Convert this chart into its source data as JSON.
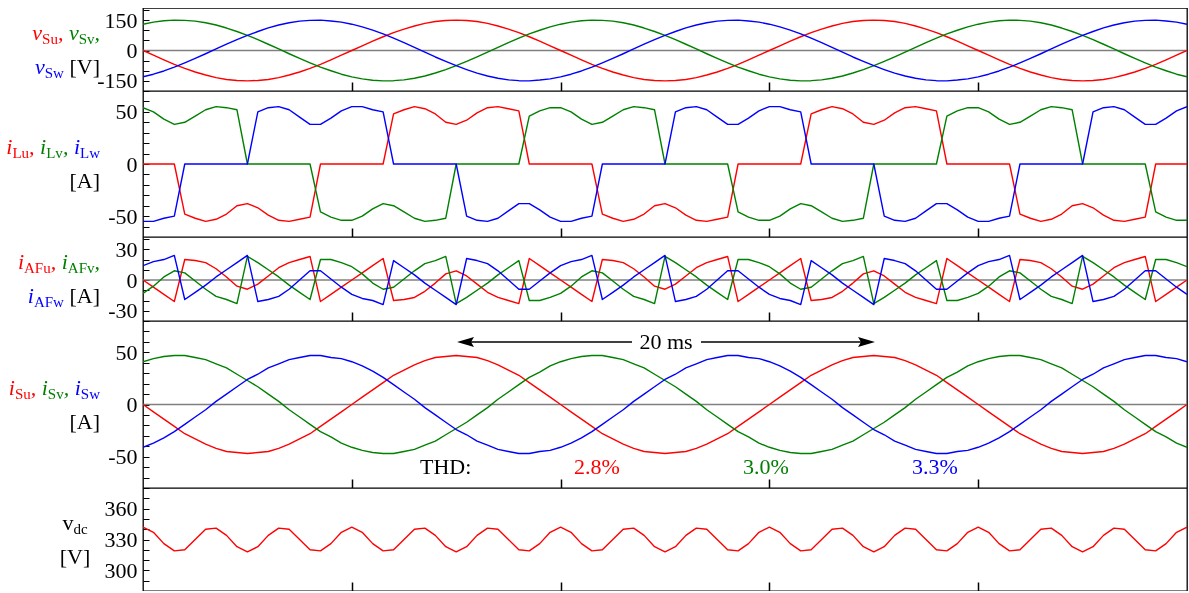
{
  "chart_data": [
    {
      "type": "line",
      "ylabel": "v$_{Su}$, v$_{Sv}$, v$_{Sw}$ [V]",
      "tick_labels": "y",
      "ylim": [
        -200,
        210
      ],
      "yticks": [
        {
          "value": -200,
          "label": null
        },
        -150,
        {
          "value": -100,
          "label": null
        },
        {
          "value": -50,
          "label": null
        },
        0,
        {
          "value": 50,
          "label": null
        },
        {
          "value": 100,
          "label": null
        },
        150,
        {
          "value": 200,
          "label": null
        }
      ],
      "ref_lines": [
        {
          "axis": "y",
          "value": 0,
          "color": "#808080"
        }
      ],
      "categories": [
        null,
        null,
        null,
        null,
        null,
        null,
        null,
        null,
        null,
        null,
        null,
        null,
        null,
        null,
        null,
        null,
        null,
        null,
        null,
        null,
        null,
        null,
        null,
        null,
        null,
        null,
        null,
        null,
        null,
        null,
        null,
        null,
        null,
        null,
        null,
        null,
        null,
        null,
        null,
        null,
        null,
        null,
        null,
        null,
        null,
        null,
        null,
        null,
        null,
        null,
        null,
        null,
        null,
        null,
        null,
        null,
        null,
        null,
        null,
        null,
        null,
        null,
        null,
        null,
        null,
        null,
        null,
        null,
        null,
        null,
        null,
        null,
        null,
        null,
        null,
        null,
        null,
        null,
        null,
        null,
        null,
        null,
        null,
        null,
        null,
        null,
        null,
        null,
        null,
        null,
        null,
        null,
        null,
        null,
        null,
        null,
        null,
        null,
        null,
        null,
        null
      ],
      "series": [
        {
          "color": "#ff0000",
          "values": [
            0,
            -23,
            -46,
            -68,
            -88,
            -106,
            -121,
            -134,
            -143,
            -148,
            -150,
            -148,
            -143,
            -134,
            -121,
            -106,
            -88,
            -68,
            -46,
            -23,
            0,
            23,
            46,
            68,
            88,
            106,
            121,
            134,
            143,
            148,
            150,
            148,
            143,
            134,
            121,
            106,
            88,
            68,
            46,
            23,
            0,
            -23,
            -46,
            -68,
            -88,
            -106,
            -121,
            -134,
            -143,
            -148,
            -150,
            -148,
            -143,
            -134,
            -121,
            -106,
            -88,
            -68,
            -46,
            -23,
            0,
            23,
            46,
            68,
            88,
            106,
            121,
            134,
            143,
            148,
            150,
            148,
            143,
            134,
            121,
            106,
            88,
            68,
            46,
            23,
            0,
            -23,
            -46,
            -68,
            -88,
            -106,
            -121,
            -134,
            -143,
            -148,
            -150,
            -148,
            -143,
            -134,
            -121,
            -106,
            -88,
            -68,
            -46,
            -23,
            0
          ]
        },
        {
          "color": "#008000",
          "values": [
            130,
            140,
            147,
            150,
            149,
            145,
            137,
            126,
            111,
            94,
            75,
            54,
            31,
            8,
            -16,
            -39,
            -61,
            -82,
            -100,
            -117,
            -130,
            -140,
            -147,
            -150,
            -149,
            -145,
            -137,
            -126,
            -111,
            -94,
            -75,
            -54,
            -31,
            -8,
            16,
            39,
            61,
            82,
            100,
            117,
            130,
            140,
            147,
            150,
            149,
            145,
            137,
            126,
            111,
            94,
            75,
            54,
            31,
            8,
            -16,
            -39,
            -61,
            -82,
            -100,
            -117,
            -130,
            -140,
            -147,
            -150,
            -149,
            -145,
            -137,
            -126,
            -111,
            -94,
            -75,
            -54,
            -31,
            -8,
            16,
            39,
            61,
            82,
            100,
            117,
            130,
            140,
            147,
            150,
            149,
            145,
            137,
            126,
            111,
            94,
            75,
            54,
            31,
            8,
            -16,
            -39,
            -61,
            -82,
            -100,
            -117,
            -130
          ]
        },
        {
          "color": "#0000ff",
          "values": [
            -130,
            -117,
            -101,
            -82,
            -61,
            -39,
            -16,
            8,
            32,
            54,
            75,
            94,
            112,
            126,
            137,
            145,
            149,
            150,
            146,
            140,
            130,
            117,
            101,
            82,
            61,
            39,
            16,
            -8,
            -32,
            -54,
            -75,
            -94,
            -112,
            -126,
            -137,
            -145,
            -149,
            -150,
            -146,
            -140,
            -130,
            -117,
            -101,
            -82,
            -61,
            -39,
            -16,
            8,
            32,
            54,
            75,
            94,
            112,
            126,
            137,
            145,
            149,
            150,
            146,
            140,
            130,
            117,
            101,
            82,
            61,
            39,
            16,
            -8,
            -32,
            -54,
            -75,
            -94,
            -112,
            -126,
            -137,
            -145,
            -149,
            -150,
            -146,
            -140,
            -130,
            -117,
            -101,
            -82,
            -61,
            -39,
            -16,
            8,
            32,
            54,
            75,
            94,
            112,
            126,
            137,
            145,
            149,
            150,
            146,
            140,
            130
          ]
        }
      ]
    },
    {
      "type": "line",
      "ylabel": "i$_{Lu}$, i$_{Lv}$, i$_{Lw}$ [A]",
      "tick_labels": "y",
      "ylim": [
        -70,
        70
      ],
      "yticks": [
        {
          "value": -70,
          "label": null
        },
        {
          "value": -60,
          "label": null
        },
        -50,
        {
          "value": -40,
          "label": null
        },
        {
          "value": -30,
          "label": null
        },
        {
          "value": -20,
          "label": null
        },
        {
          "value": -10,
          "label": null
        },
        0,
        {
          "value": 10,
          "label": null
        },
        {
          "value": 20,
          "label": null
        },
        {
          "value": 30,
          "label": null
        },
        {
          "value": 40,
          "label": null
        },
        50,
        {
          "value": 60,
          "label": null
        },
        {
          "value": 70,
          "label": null
        }
      ],
      "categories": [
        null,
        null,
        null,
        null,
        null,
        null,
        null,
        null,
        null,
        null,
        null,
        null,
        null,
        null,
        null,
        null,
        null,
        null,
        null,
        null,
        null,
        null,
        null,
        null,
        null,
        null,
        null,
        null,
        null,
        null,
        null,
        null,
        null,
        null,
        null,
        null,
        null,
        null,
        null,
        null,
        null,
        null,
        null,
        null,
        null,
        null,
        null,
        null,
        null,
        null,
        null,
        null,
        null,
        null,
        null,
        null,
        null,
        null,
        null,
        null,
        null,
        null,
        null,
        null,
        null,
        null,
        null,
        null,
        null,
        null,
        null,
        null,
        null,
        null,
        null,
        null,
        null,
        null,
        null,
        null,
        null,
        null,
        null,
        null,
        null,
        null,
        null,
        null,
        null,
        null,
        null,
        null,
        null,
        null,
        null,
        null,
        null,
        null,
        null,
        null,
        null
      ],
      "series": [
        {
          "color": "#ff0000",
          "values": [
            0,
            0,
            0,
            0,
            -48,
            -52,
            -55,
            -53,
            -48,
            -40,
            -38,
            -42,
            -49,
            -54,
            -55,
            -53,
            -51,
            0,
            0,
            0,
            0,
            0,
            0,
            0,
            48,
            52,
            55,
            53,
            48,
            40,
            38,
            42,
            49,
            54,
            55,
            53,
            51,
            0,
            0,
            0,
            0,
            0,
            0,
            0,
            -48,
            -52,
            -55,
            -53,
            -48,
            -40,
            -38,
            -42,
            -49,
            -54,
            -55,
            -53,
            -51,
            0,
            0,
            0,
            0,
            0,
            0,
            0,
            48,
            52,
            55,
            53,
            48,
            40,
            38,
            42,
            49,
            54,
            55,
            53,
            51,
            0,
            0,
            0,
            0,
            0,
            0,
            0,
            -48,
            -52,
            -55,
            -53,
            -48,
            -40,
            -38,
            -42,
            -49,
            -54,
            -55,
            -53,
            -51,
            0,
            0,
            0,
            0
          ]
        },
        {
          "color": "#008000",
          "values": [
            54,
            50,
            43,
            38,
            40,
            46,
            52,
            55,
            54,
            52,
            0,
            0,
            0,
            0,
            0,
            0,
            0,
            -46,
            -51,
            -54,
            -54,
            -50,
            -43,
            -38,
            -40,
            -46,
            -52,
            -55,
            -54,
            -52,
            0,
            0,
            0,
            0,
            0,
            0,
            0,
            46,
            51,
            54,
            54,
            50,
            43,
            38,
            40,
            46,
            52,
            55,
            54,
            52,
            0,
            0,
            0,
            0,
            0,
            0,
            0,
            -46,
            -51,
            -54,
            -54,
            -50,
            -43,
            -38,
            -40,
            -46,
            -52,
            -55,
            -54,
            -52,
            0,
            0,
            0,
            0,
            0,
            0,
            0,
            46,
            51,
            54,
            54,
            50,
            43,
            38,
            40,
            46,
            52,
            55,
            54,
            52,
            0,
            0,
            0,
            0,
            0,
            0,
            0,
            -46,
            -51,
            -54,
            -54
          ]
        },
        {
          "color": "#0000ff",
          "values": [
            -55,
            -55,
            -52,
            -50,
            0,
            0,
            0,
            0,
            0,
            0,
            0,
            50,
            54,
            55,
            52,
            45,
            38,
            38,
            44,
            51,
            55,
            55,
            52,
            50,
            0,
            0,
            0,
            0,
            0,
            0,
            0,
            -50,
            -54,
            -55,
            -52,
            -45,
            -38,
            -38,
            -44,
            -51,
            -55,
            -55,
            -52,
            -50,
            0,
            0,
            0,
            0,
            0,
            0,
            0,
            50,
            54,
            55,
            52,
            45,
            38,
            38,
            44,
            51,
            55,
            55,
            52,
            50,
            0,
            0,
            0,
            0,
            0,
            0,
            0,
            -50,
            -54,
            -55,
            -52,
            -45,
            -38,
            -38,
            -44,
            -51,
            -55,
            -55,
            -52,
            -50,
            0,
            0,
            0,
            0,
            0,
            0,
            0,
            50,
            54,
            55,
            52,
            45,
            38,
            38,
            44,
            51,
            55
          ]
        }
      ]
    },
    {
      "type": "line",
      "ylabel": "i$_{AFu}$, i$_{AFv}$, i$_{AFw}$ [A]",
      "tick_labels": "y",
      "ylim": [
        -40,
        42
      ],
      "yticks": [
        {
          "value": -40,
          "label": null
        },
        -30,
        {
          "value": -20,
          "label": null
        },
        {
          "value": -10,
          "label": null
        },
        0,
        {
          "value": 10,
          "label": null
        },
        {
          "value": 20,
          "label": null
        },
        30,
        {
          "value": 40,
          "label": null
        }
      ],
      "ref_lines": [
        {
          "axis": "y",
          "value": 0,
          "color": "#808080"
        }
      ],
      "categories": [
        null,
        null,
        null,
        null,
        null,
        null,
        null,
        null,
        null,
        null,
        null,
        null,
        null,
        null,
        null,
        null,
        null,
        null,
        null,
        null,
        null,
        null,
        null,
        null,
        null,
        null,
        null,
        null,
        null,
        null,
        null,
        null,
        null,
        null,
        null,
        null,
        null,
        null,
        null,
        null,
        null,
        null,
        null,
        null,
        null,
        null,
        null,
        null,
        null,
        null,
        null,
        null,
        null,
        null,
        null,
        null,
        null,
        null,
        null,
        null,
        null,
        null,
        null,
        null,
        null,
        null,
        null,
        null,
        null,
        null,
        null,
        null,
        null,
        null,
        null,
        null,
        null,
        null,
        null,
        null,
        null,
        null,
        null,
        null,
        null,
        null,
        null,
        null,
        null,
        null,
        null,
        null,
        null,
        null,
        null,
        null,
        null,
        null,
        null,
        null,
        null
      ],
      "series": [
        {
          "color": "#ff0000",
          "values": [
            0,
            -7,
            -14,
            -21,
            20,
            19,
            17,
            11,
            3,
            -6,
            -9,
            -4,
            4,
            12,
            17,
            20,
            23,
            -21,
            -14,
            -7,
            0,
            7,
            14,
            21,
            -20,
            -19,
            -17,
            -11,
            -3,
            6,
            9,
            4,
            -4,
            -12,
            -17,
            -20,
            -23,
            21,
            14,
            7,
            0,
            -7,
            -14,
            -21,
            20,
            19,
            17,
            11,
            3,
            -6,
            -9,
            -4,
            4,
            12,
            17,
            20,
            23,
            -21,
            -14,
            -7,
            0,
            7,
            14,
            21,
            -20,
            -19,
            -17,
            -11,
            -3,
            6,
            9,
            4,
            -4,
            -12,
            -17,
            -20,
            -23,
            21,
            14,
            7,
            0,
            -7,
            -14,
            -21,
            20,
            19,
            17,
            11,
            3,
            -6,
            -9,
            -4,
            4,
            12,
            17,
            20,
            23,
            -21,
            -14,
            -7,
            0
          ]
        },
        {
          "color": "#008000",
          "values": [
            -13,
            -6,
            3,
            9,
            7,
            -1,
            -9,
            -16,
            -19,
            -23,
            23,
            17,
            10,
            3,
            -5,
            -12,
            -19,
            20,
            20,
            17,
            13,
            6,
            -3,
            -9,
            -7,
            1,
            9,
            16,
            19,
            23,
            -23,
            -17,
            -10,
            -3,
            5,
            12,
            19,
            -20,
            -20,
            -17,
            -13,
            -6,
            3,
            9,
            7,
            -1,
            -9,
            -16,
            -19,
            -23,
            23,
            17,
            10,
            3,
            -5,
            -12,
            -19,
            20,
            20,
            17,
            13,
            6,
            -3,
            -9,
            -7,
            1,
            9,
            16,
            19,
            23,
            -23,
            -17,
            -10,
            -3,
            5,
            12,
            19,
            -20,
            -20,
            -17,
            -13,
            -6,
            3,
            9,
            7,
            -1,
            -9,
            -16,
            -19,
            -23,
            23,
            17,
            10,
            3,
            -5,
            -12,
            -19,
            20,
            20,
            17,
            13
          ]
        },
        {
          "color": "#0000ff",
          "values": [
            14,
            18,
            20,
            24,
            -19,
            -12,
            -5,
            3,
            10,
            17,
            24,
            -21,
            -19,
            -16,
            -9,
            0,
            9,
            9,
            1,
            -7,
            -14,
            -18,
            -20,
            -24,
            19,
            12,
            5,
            -3,
            -10,
            -17,
            -24,
            21,
            19,
            16,
            9,
            0,
            -9,
            -9,
            -1,
            7,
            14,
            18,
            20,
            24,
            -19,
            -12,
            -5,
            3,
            10,
            17,
            24,
            -21,
            -19,
            -16,
            -9,
            0,
            9,
            9,
            1,
            -7,
            -14,
            -18,
            -20,
            -24,
            19,
            12,
            5,
            -3,
            -10,
            -17,
            -24,
            21,
            19,
            16,
            9,
            0,
            -9,
            -9,
            -1,
            7,
            14,
            18,
            20,
            24,
            -19,
            -12,
            -5,
            3,
            10,
            17,
            24,
            -21,
            -19,
            -16,
            -9,
            0,
            9,
            9,
            1,
            -7,
            -14
          ]
        }
      ]
    },
    {
      "type": "line",
      "ylabel": "i$_{Su}$, i$_{Sv}$, i$_{Sw}$ [A]",
      "tick_labels": "y",
      "ylim": [
        -80,
        80
      ],
      "yticks": [
        {
          "value": -80,
          "label": null
        },
        {
          "value": -70,
          "label": null
        },
        {
          "value": -60,
          "label": null
        },
        -50,
        {
          "value": -40,
          "label": null
        },
        {
          "value": -30,
          "label": null
        },
        {
          "value": -20,
          "label": null
        },
        {
          "value": -10,
          "label": null
        },
        0,
        {
          "value": 10,
          "label": null
        },
        {
          "value": 20,
          "label": null
        },
        {
          "value": 30,
          "label": null
        },
        {
          "value": 40,
          "label": null
        },
        50,
        {
          "value": 60,
          "label": null
        },
        {
          "value": 70,
          "label": null
        },
        {
          "value": 80,
          "label": null
        }
      ],
      "ref_lines": [
        {
          "axis": "y",
          "value": 0,
          "color": "#808080"
        }
      ],
      "annotations": [
        "20 ms",
        "THD:",
        "2.8%",
        "3.0%",
        "3.3%"
      ],
      "categories": [
        null,
        null,
        null,
        null,
        null,
        null,
        null,
        null,
        null,
        null,
        null,
        null,
        null,
        null,
        null,
        null,
        null,
        null,
        null,
        null,
        null,
        null,
        null,
        null,
        null,
        null,
        null,
        null,
        null,
        null,
        null,
        null,
        null,
        null,
        null,
        null,
        null,
        null,
        null,
        null,
        null,
        null,
        null,
        null,
        null,
        null,
        null,
        null,
        null,
        null,
        null,
        null,
        null,
        null,
        null,
        null,
        null,
        null,
        null,
        null,
        null,
        null,
        null,
        null,
        null,
        null,
        null,
        null,
        null,
        null,
        null,
        null,
        null,
        null,
        null,
        null,
        null,
        null,
        null,
        null,
        null,
        null,
        null,
        null,
        null,
        null,
        null,
        null,
        null,
        null,
        null,
        null,
        null,
        null,
        null,
        null,
        null,
        null,
        null,
        null,
        null
      ],
      "series": [
        {
          "color": "#ff0000",
          "values": [
            0,
            -7,
            -14,
            -21,
            -28,
            -33,
            -38,
            -42,
            -45,
            -46,
            -47,
            -46,
            -45,
            -42,
            -38,
            -33,
            -28,
            -21,
            -14,
            -7,
            0,
            7,
            14,
            21,
            28,
            33,
            38,
            42,
            45,
            46,
            47,
            46,
            45,
            42,
            38,
            33,
            28,
            21,
            14,
            7,
            0,
            -7,
            -14,
            -21,
            -28,
            -33,
            -38,
            -42,
            -45,
            -46,
            -47,
            -46,
            -45,
            -42,
            -38,
            -33,
            -28,
            -21,
            -14,
            -7,
            0,
            7,
            14,
            21,
            28,
            33,
            38,
            42,
            45,
            46,
            47,
            46,
            45,
            42,
            38,
            33,
            28,
            21,
            14,
            7,
            0,
            -7,
            -14,
            -21,
            -28,
            -33,
            -38,
            -42,
            -45,
            -46,
            -47,
            -46,
            -45,
            -42,
            -38,
            -33,
            -28,
            -21,
            -14,
            -7,
            0
          ]
        },
        {
          "color": "#008000",
          "values": [
            41,
            44,
            46,
            47,
            47,
            45,
            43,
            39,
            35,
            29,
            23,
            17,
            10,
            3,
            -5,
            -12,
            -19,
            -26,
            -31,
            -37,
            -41,
            -44,
            -46,
            -47,
            -47,
            -45,
            -43,
            -39,
            -35,
            -29,
            -23,
            -17,
            -10,
            -3,
            5,
            12,
            19,
            26,
            31,
            37,
            41,
            44,
            46,
            47,
            47,
            45,
            43,
            39,
            35,
            29,
            23,
            17,
            10,
            3,
            -5,
            -12,
            -19,
            -26,
            -31,
            -37,
            -41,
            -44,
            -46,
            -47,
            -47,
            -45,
            -43,
            -39,
            -35,
            -29,
            -23,
            -17,
            -10,
            -3,
            5,
            12,
            19,
            26,
            31,
            37,
            41,
            44,
            46,
            47,
            47,
            45,
            43,
            39,
            35,
            29,
            23,
            17,
            10,
            3,
            -5,
            -12,
            -19,
            -26,
            -31,
            -37,
            -41
          ]
        },
        {
          "color": "#0000ff",
          "values": [
            -41,
            -37,
            -32,
            -26,
            -19,
            -12,
            -5,
            3,
            10,
            17,
            24,
            29,
            35,
            39,
            43,
            45,
            47,
            47,
            45,
            44,
            41,
            37,
            32,
            26,
            19,
            12,
            5,
            -3,
            -10,
            -17,
            -24,
            -29,
            -35,
            -39,
            -43,
            -45,
            -47,
            -47,
            -45,
            -44,
            -41,
            -37,
            -32,
            -26,
            -19,
            -12,
            -5,
            3,
            10,
            17,
            24,
            29,
            35,
            39,
            43,
            45,
            47,
            47,
            45,
            44,
            41,
            37,
            32,
            26,
            19,
            12,
            5,
            -3,
            -10,
            -17,
            -24,
            -29,
            -35,
            -39,
            -43,
            -45,
            -47,
            -47,
            -45,
            -44,
            -41,
            -37,
            -32,
            -26,
            -19,
            -12,
            -5,
            3,
            10,
            17,
            24,
            29,
            35,
            39,
            43,
            45,
            47,
            47,
            45,
            44,
            41
          ]
        }
      ]
    },
    {
      "type": "line",
      "ylabel": "v$_{dc}$ [V]",
      "tick_labels": "y",
      "ylim": [
        280,
        380
      ],
      "yticks": [
        {
          "value": 280,
          "label": null
        },
        {
          "value": 290,
          "label": null
        },
        300,
        {
          "value": 310,
          "label": null
        },
        {
          "value": 320,
          "label": null
        },
        330,
        {
          "value": 340,
          "label": null
        },
        {
          "value": 350,
          "label": null
        },
        360,
        {
          "value": 370,
          "label": null
        },
        {
          "value": 380,
          "label": null
        }
      ],
      "categories": [
        null,
        null,
        null,
        null,
        null,
        null,
        null,
        null,
        null,
        null,
        null,
        null,
        null,
        null,
        null,
        null,
        null,
        null,
        null,
        null,
        null,
        null,
        null,
        null,
        null,
        null,
        null,
        null,
        null,
        null,
        null,
        null,
        null,
        null,
        null,
        null,
        null,
        null,
        null,
        null,
        null,
        null,
        null,
        null,
        null,
        null,
        null,
        null,
        null,
        null,
        null,
        null,
        null,
        null,
        null,
        null,
        null,
        null,
        null,
        null,
        null,
        null,
        null,
        null,
        null,
        null,
        null,
        null,
        null,
        null,
        null,
        null,
        null,
        null,
        null,
        null,
        null,
        null,
        null,
        null,
        null,
        null,
        null,
        null,
        null,
        null,
        null,
        null,
        null,
        null,
        null,
        null,
        null,
        null,
        null,
        null,
        null,
        null,
        null,
        null,
        null
      ],
      "series": [
        {
          "color": "#ff0000",
          "values": [
            342,
            337,
            326,
            319,
            320,
            330,
            340,
            341,
            334,
            323,
            318,
            323,
            334,
            341,
            340,
            330,
            320,
            319,
            326,
            337,
            342,
            337,
            326,
            319,
            320,
            330,
            340,
            341,
            334,
            323,
            318,
            323,
            334,
            341,
            340,
            330,
            320,
            319,
            326,
            337,
            342,
            337,
            326,
            319,
            320,
            330,
            340,
            341,
            334,
            323,
            318,
            323,
            334,
            341,
            340,
            330,
            320,
            319,
            326,
            337,
            342,
            337,
            326,
            319,
            320,
            330,
            340,
            341,
            334,
            323,
            318,
            323,
            334,
            341,
            340,
            330,
            320,
            319,
            326,
            337,
            342,
            337,
            326,
            319,
            320,
            330,
            340,
            341,
            334,
            323,
            318,
            323,
            334,
            341,
            340,
            330,
            320,
            319,
            326,
            337,
            342
          ]
        }
      ]
    }
  ]
}
